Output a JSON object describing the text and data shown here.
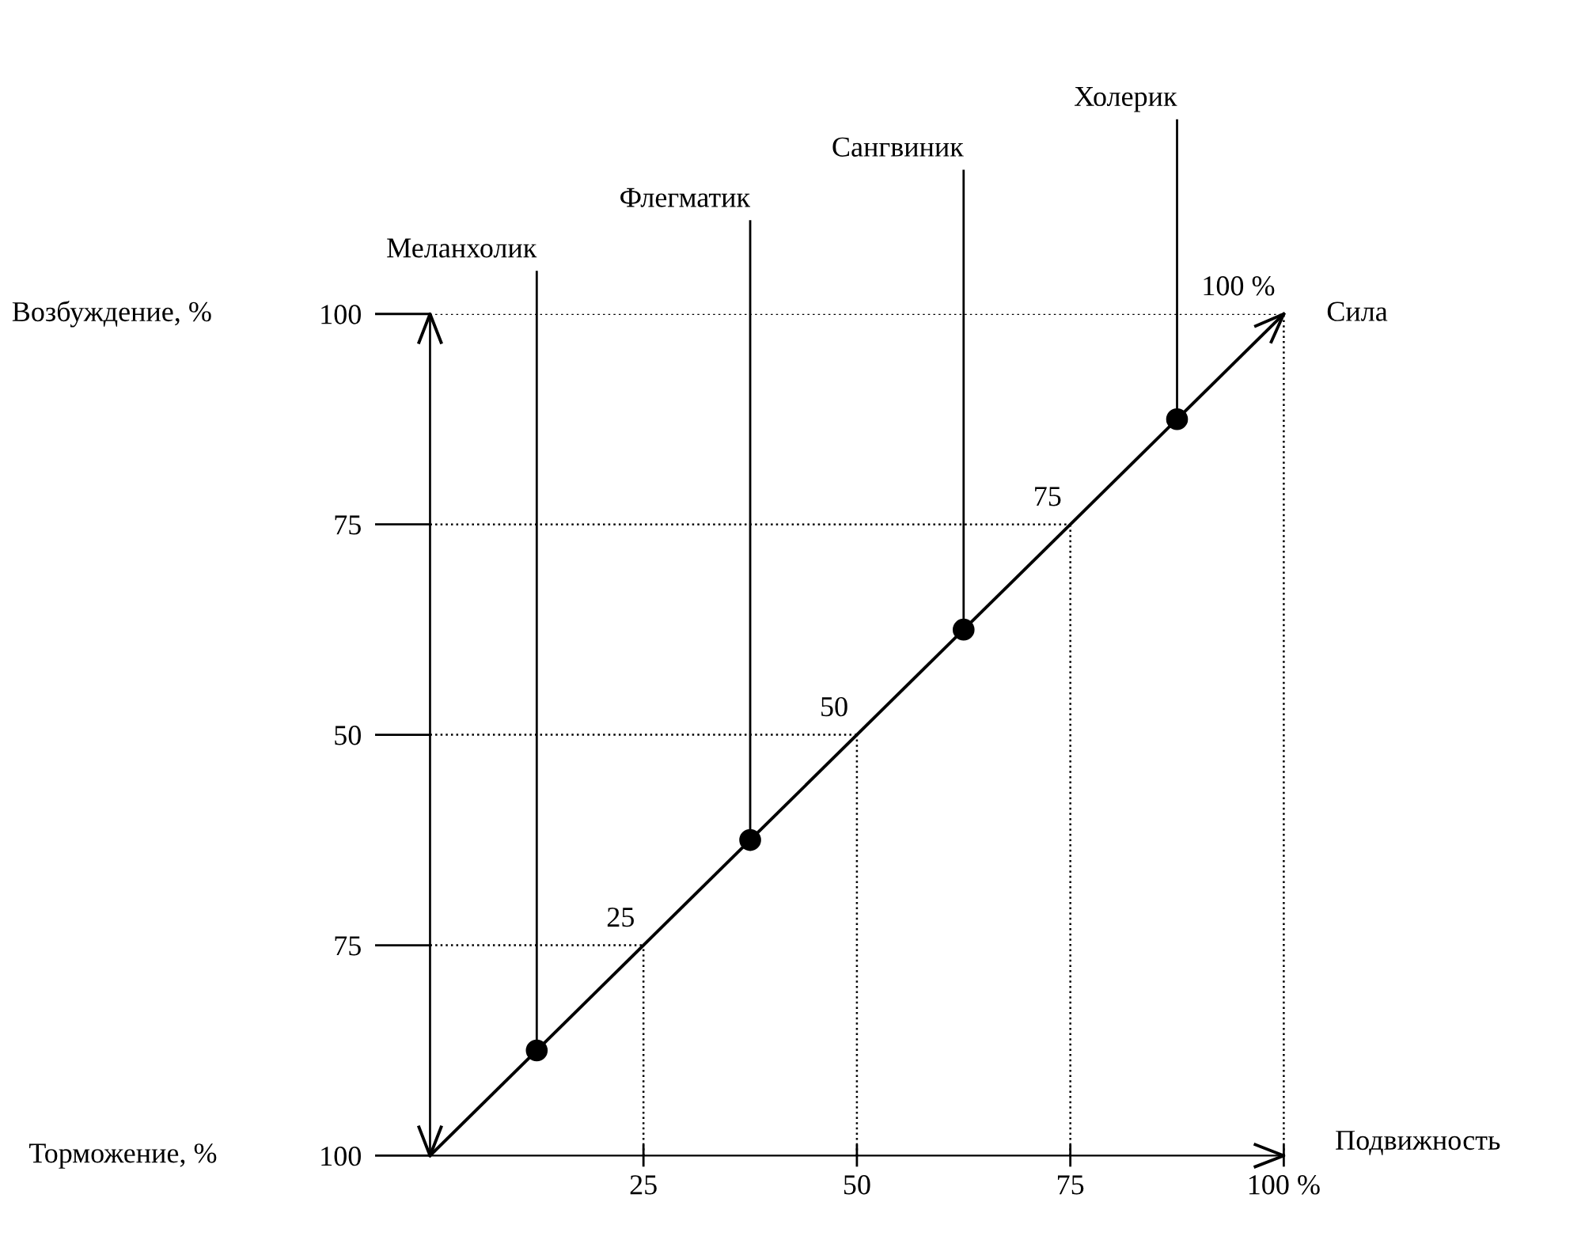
{
  "chart_data": {
    "type": "scatter",
    "xlabel": "Подвижность",
    "y2label": "Торможение, %",
    "annotations": [
      "Возбуждение, %",
      {
        "text": "25",
        "x": 25,
        "y": 25
      },
      {
        "text": "50",
        "x": 50,
        "y": 50
      },
      {
        "text": "75",
        "x": 75,
        "y": 75
      },
      {
        "text": "100 %",
        "x": 100,
        "y": 100
      },
      {
        "text": "Сила",
        "x": 100,
        "y": 100
      }
    ],
    "xlim": [
      0,
      100
    ],
    "ylim": [
      0,
      100
    ],
    "y2lim": [
      100,
      0
    ],
    "xticks": [
      25,
      50,
      75,
      {
        "value": 100,
        "label": "100 %"
      }
    ],
    "yticks": [
      50,
      75,
      100
    ],
    "y2ticks": [
      100,
      75
    ],
    "grid": true,
    "marker": "circle",
    "series": [
      {
        "type": "line",
        "color": "#000000",
        "x": [
          0,
          100
        ],
        "values": [
          0,
          100
        ],
        "marker": "none"
      },
      {
        "name": "Меланхолик",
        "color": "#000000",
        "x": [
          12.5
        ],
        "values": [
          12.5
        ]
      },
      {
        "name": "Флегматик",
        "color": "#000000",
        "x": [
          37.5
        ],
        "values": [
          37.5
        ]
      },
      {
        "name": "Сангвиник",
        "color": "#000000",
        "x": [
          62.5
        ],
        "values": [
          62.5
        ]
      },
      {
        "name": "Холерик",
        "color": "#000000",
        "x": [
          87.5
        ],
        "values": [
          87.5
        ]
      }
    ]
  }
}
